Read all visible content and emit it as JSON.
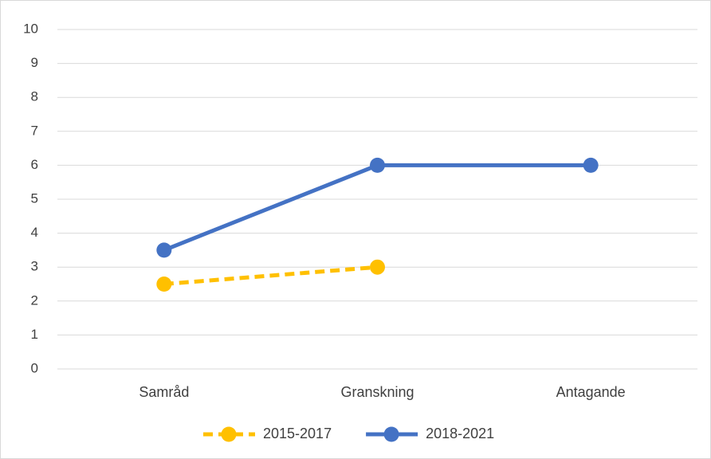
{
  "chart_data": {
    "type": "line",
    "categories": [
      "Samråd",
      "Granskning",
      "Antagande"
    ],
    "series": [
      {
        "name": "2015-2017",
        "color": "#FFC000",
        "line_style": "dashed",
        "values": [
          2.5,
          3,
          null
        ]
      },
      {
        "name": "2018-2021",
        "color": "#4472C4",
        "line_style": "solid",
        "values": [
          3.5,
          6,
          6
        ]
      }
    ],
    "ylim": [
      0,
      10
    ],
    "yticks": [
      0,
      1,
      2,
      3,
      4,
      5,
      6,
      7,
      8,
      9,
      10
    ],
    "grid": true,
    "legend": "bottom"
  }
}
